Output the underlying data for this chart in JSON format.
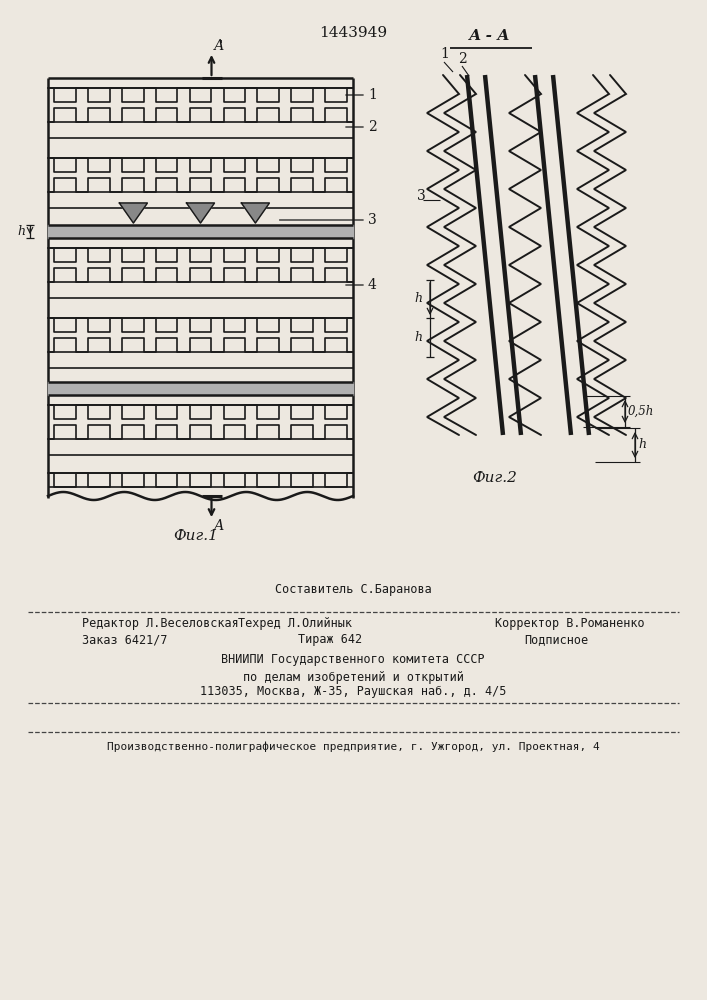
{
  "patent_number": "1443949",
  "fig1_label": "Фиг.1",
  "fig2_label": "Фиг.2",
  "section_label": "А - А",
  "label1": "1",
  "label2": "2",
  "label3": "3",
  "label4": "4",
  "dim_label_h": "h",
  "dim_label_05h": "0,5h",
  "footer_line1": "Составитель С.Баранова",
  "footer_line2_left": "Редактор Л.Веселовская",
  "footer_line2_mid": "Техред Л.Олийнык",
  "footer_line2_right": "Корректор В.Романенко",
  "footer_line3_left": "Заказ 6421/7",
  "footer_line3_mid": "Тираж 642",
  "footer_line3_right": "Подписное",
  "footer_line4": "ВНИИПИ Государственного комитета СССР",
  "footer_line5": "по делам изобретений и открытий",
  "footer_line6": "113035, Москва, Ж-35, Раушская наб., д. 4/5",
  "footer_line7": "Производственно-полиграфическое предприятие, г. Ужгород, ул. Проектная, 4",
  "bg_color": "#ede8e0",
  "line_color": "#1a1a1a",
  "text_color": "#1a1a1a"
}
